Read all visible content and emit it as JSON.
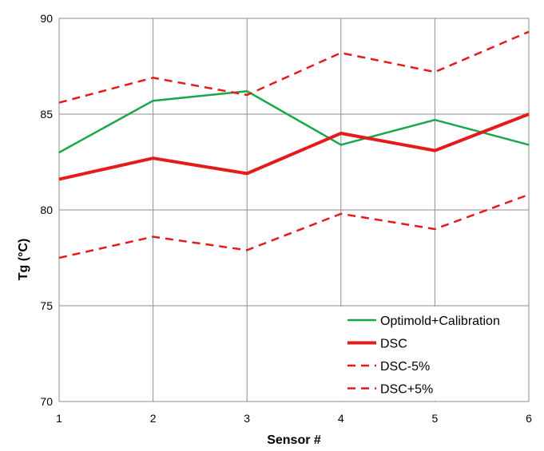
{
  "chart_data": {
    "type": "line",
    "title": "",
    "xlabel": "Sensor #",
    "ylabel": "Tg (°C)",
    "x": [
      1,
      2,
      3,
      4,
      5,
      6
    ],
    "xlim": [
      1,
      6
    ],
    "ylim": [
      70,
      90
    ],
    "y_ticks": [
      70,
      75,
      80,
      85,
      90
    ],
    "x_ticks": [
      1,
      2,
      3,
      4,
      5,
      6
    ],
    "grid": true,
    "legend_position": "bottom-right",
    "series": [
      {
        "name": "Optimold+Calibration",
        "color": "#1aa64a",
        "style": "solid",
        "width": "normal",
        "values": [
          83.0,
          85.7,
          86.2,
          83.4,
          84.7,
          83.4
        ]
      },
      {
        "name": "DSC",
        "color": "#e31b1b",
        "style": "solid",
        "width": "thick",
        "values": [
          81.6,
          82.7,
          81.9,
          84.0,
          83.1,
          85.0
        ]
      },
      {
        "name": "DSC-5%",
        "color": "#e31b1b",
        "style": "dashed",
        "width": "normal",
        "values": [
          77.5,
          78.6,
          77.9,
          79.8,
          79.0,
          80.8
        ]
      },
      {
        "name": "DSC+5%",
        "color": "#e31b1b",
        "style": "dashed",
        "width": "normal",
        "values": [
          85.6,
          86.9,
          86.0,
          88.2,
          87.2,
          89.3
        ]
      }
    ]
  }
}
